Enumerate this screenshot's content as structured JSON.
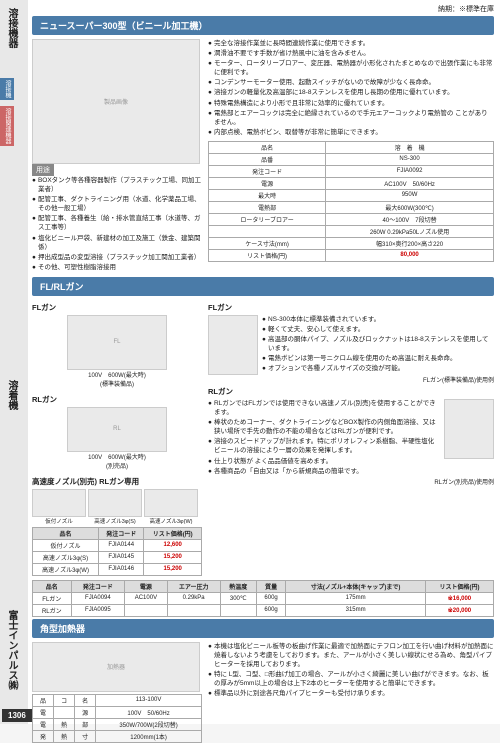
{
  "topbar": "納期：※標準在庫",
  "sidebar": {
    "label1": "溶接機器",
    "tab1": "溶接機",
    "tab2": "溶接関連機器",
    "label2": "溶着機",
    "label3": "富士インパルス㈱"
  },
  "s1": {
    "title": "ニュースーパー300型（ビニール加工機）",
    "bullets": [
      "完全な溶接作業並に長時間連続作業に使用できます。",
      "潤滑油不要です手数が省け熱風中に油を含みません。",
      "モーター、ロータリーブロアー、変圧器、電熱器が小形化されたまとめなので出張作業にも非常に便利です。",
      "コンデンサーモーター使用、起動スイッチがないので故障が少なく長命命。",
      "溶接ガンの軽量化及高温部に18-8ステンレスを使用し長期の使用に優れています。",
      "特殊電熱構造により小形で且非常に効率的に優れています。",
      "電熱部とエアーコックは完全に絶縁されているので手元エアーコックより電熱管の ことがありません。",
      "内部点検、電熱ボビン、取替等が非常に簡単にできます。"
    ],
    "use_hdr": "用途",
    "uses": [
      "BOXタンク等各種容器製作（プラスチック工場、同加工業者）",
      "配管工事、ダクトライニング用（水道、化学薬品工場、その他一般工場）",
      "配管工事、各種養生（給・排水管直結工事（水道等、ガス工事等）",
      "塩化ビニール戸袋、新建材の加工及施工（鉄金、建築関係）",
      "押出成型品の変型溶接（プラスチック加工関加工業者）",
      "その他、可塑性樹脂溶接用"
    ],
    "spec": {
      "rows": [
        [
          "品名",
          "溶　着　機"
        ],
        [
          "品番",
          "NS-300"
        ],
        [
          "発注コード",
          "FJIA0092"
        ],
        [
          "電源",
          "AC100V　50/60Hz"
        ],
        [
          "最大時",
          "950W"
        ],
        [
          "電熱部",
          "最大600W(300℃)"
        ],
        [
          "ロータリーブロアー",
          "40〜100V　7段切替"
        ],
        [
          "",
          "260W 0.29kPa50Lノズル使用"
        ],
        [
          "ケース寸法(mm)",
          "幅310×奥行200×高さ220"
        ],
        [
          "リスト価格(円)",
          "80,000"
        ]
      ]
    }
  },
  "s2": {
    "title": "FL/RLガン",
    "fl_title": "FLガン",
    "fl_cap": "100V　600W(最大時)\n(標準装備品)",
    "fl_bullets": [
      "NS-300本体に標準装備されています。",
      "軽くて丈夫、安心して使えます。",
      "高温部の胴体パイプ、ノズル及びロックナットは18-8ステンレスを使用しています。",
      "電熱ボビンは第一号ニクロム線を使用のため高温に耐え長命命。",
      "オプションで各種ノズルサイズの交換が可能。"
    ],
    "fl_note": "FLガン(標準装備品)使用例",
    "rl_title": "RLガン",
    "rl_cap": "100V　600W(最大時)\n(別売品)",
    "rl_bullets": [
      "RLガンではFLガンでは使用できない高速ノズル(別売)を使用することができます。",
      "棒状のためコーナー、ダクトライニングなどBOX製作の内側角面溶接、又は狭い場所で手先の動作の不能の場合などはRLガンが便利です。",
      "溶接のスピードアップが計れます。特にポリオレフィン系樹脂、半硬性塩化ビニールの溶接により一層の効果を発揮します。",
      "仕上り状態が よく品品価値を高めます。",
      "各種商品の「自由又は「から新規商品の簡単です。"
    ],
    "rl_note": "RLガン(別売品)使用例",
    "noz_title": "高速度ノズル(別売) RLガン専用",
    "noz_labels": [
      "仮付ノズル",
      "高速ノズル3φ(S)",
      "高速ノズル3φ(W)"
    ],
    "noz_tbl": {
      "hdr": [
        "品名",
        "発注コード",
        "リスト価格(円)"
      ],
      "rows": [
        [
          "仮付ノズル",
          "FJIA0144",
          "12,600"
        ],
        [
          "高速ノズル3φ(S)",
          "FJIA0145",
          "15,200"
        ],
        [
          "高速ノズル3φ(W)",
          "FJIA0146",
          "15,200"
        ]
      ]
    },
    "gun_tbl": {
      "hdr": [
        "品名",
        "発注コード",
        "電源",
        "エアー圧力",
        "熱温度",
        "質量",
        "寸法(ノズル+本体(キャップ)まで)",
        "リスト価格(円)"
      ],
      "rows": [
        [
          "FLガン",
          "FJIA0094",
          "AC100V",
          "0.29kPa",
          "300℃",
          "600g",
          "175mm",
          "※16,000"
        ],
        [
          "RLガン",
          "FJIA0095",
          "",
          "",
          "",
          "600g",
          "315mm",
          "※20,000"
        ]
      ]
    }
  },
  "s3": {
    "title": "角型加熱器",
    "bullets": [
      "本機は塩化ビニール板等の板曲げ作業に最適で加熱面にテフロン加工を行い曲げ材料が加熱面に焼着しないよう考慮をしております。また、アールが小さく美しい線状にせる為め、角型パイプヒーターを採用しております。",
      "特に L型、コ型、□形曲げ加工の場合、アールが小さく綺麗に美しい曲げができます。なお、板の厚みが5mm以上の場合は上下2本のヒーターを使用すると簡単にできます。",
      "標準品以外に別途各尺角パイプヒーターも受付け承ります。"
    ],
    "tbl": {
      "rows": [
        [
          "品",
          "コ",
          "名",
          "113-100V"
        ],
        [
          "電",
          "",
          "源",
          "100V　50/60Hz"
        ],
        [
          "電",
          "熱",
          "部",
          "350W/700W(2段切替)"
        ],
        [
          "発",
          "熱",
          "寸",
          "1200mm(1本)"
        ]
      ]
    }
  },
  "pagenum": "1306"
}
